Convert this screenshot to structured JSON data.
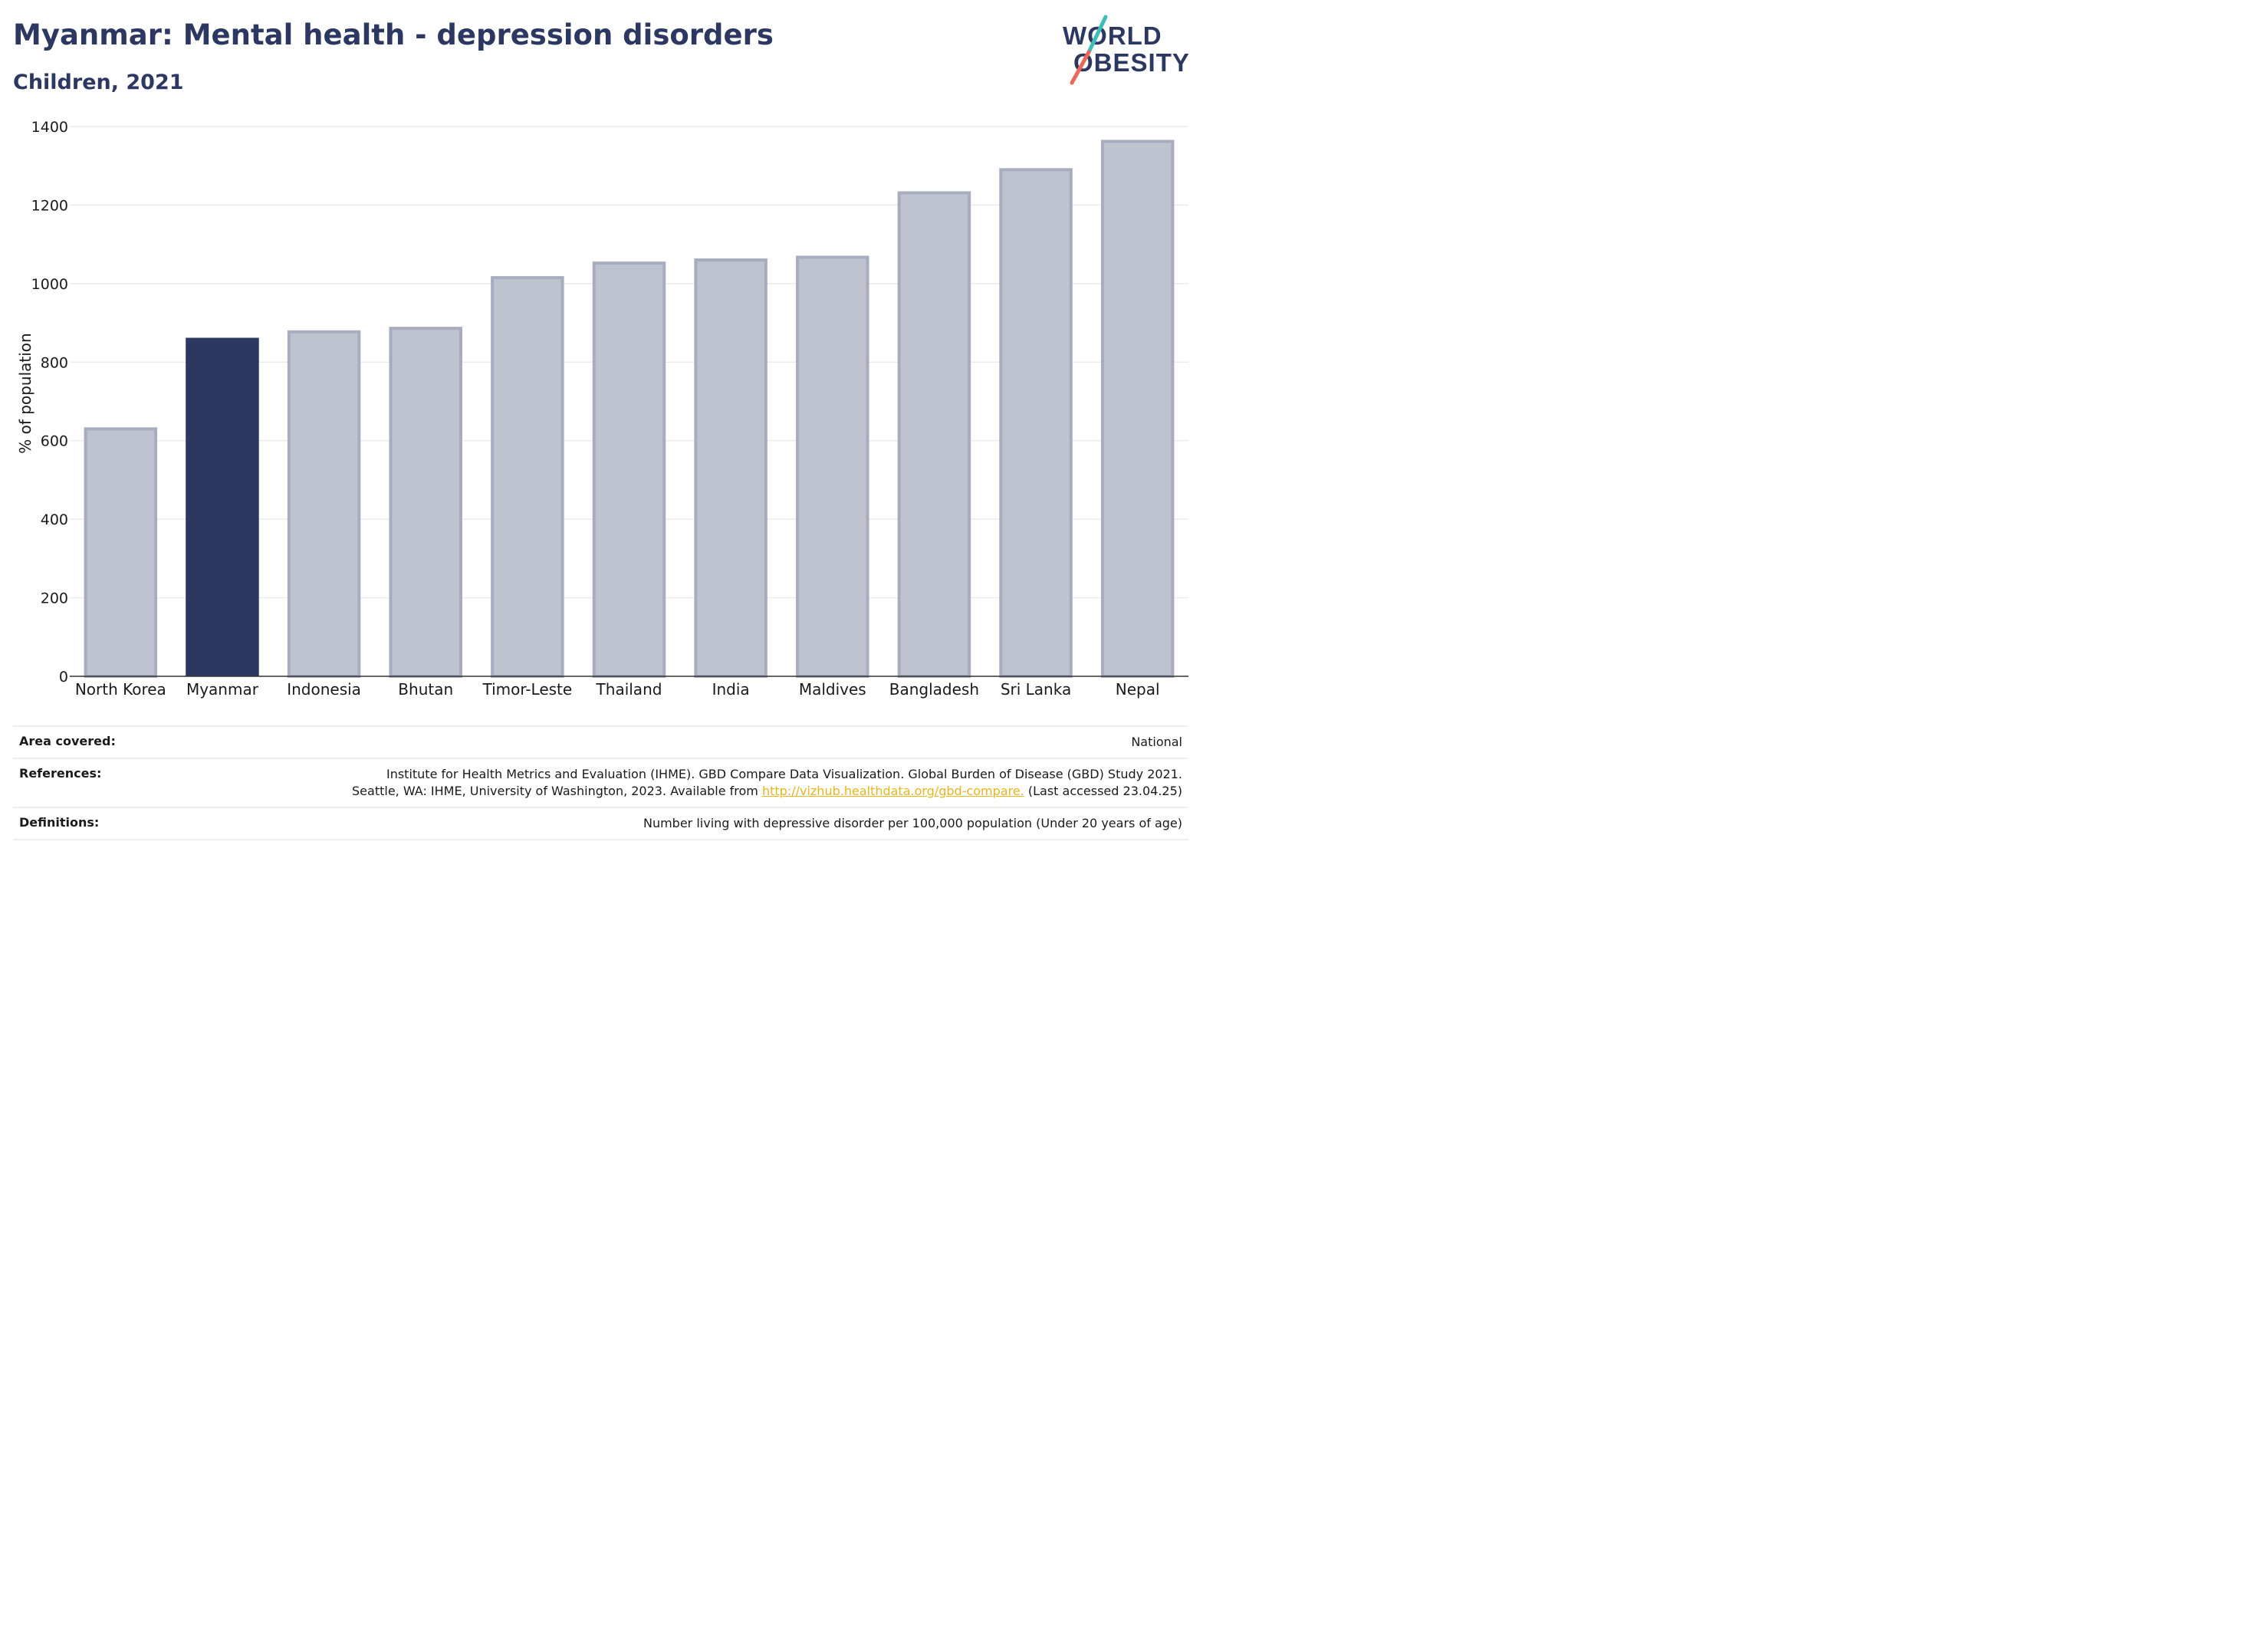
{
  "header": {
    "title": "Myanmar: Mental health - depression disorders",
    "subtitle": "Children, 2021"
  },
  "logo": {
    "line1": "WORLD",
    "line2": "OBESITY"
  },
  "chart_data": {
    "type": "bar",
    "categories": [
      "North Korea",
      "Myanmar",
      "Indonesia",
      "Bhutan",
      "Timor-Leste",
      "Thailand",
      "India",
      "Maldives",
      "Bangladesh",
      "Sri Lanka",
      "Nepal"
    ],
    "values": [
      634,
      862,
      881,
      890,
      1019,
      1056,
      1064,
      1071,
      1235,
      1294,
      1366
    ],
    "highlight": "Myanmar",
    "ylabel": "% of population",
    "ylim": [
      0,
      1400
    ],
    "yticks": [
      0,
      200,
      400,
      600,
      800,
      1000,
      1200,
      1400
    ],
    "grid": true,
    "colors": {
      "highlight": "#2c3862",
      "other_fill": "#bfc3cf",
      "other_edge": "#a7adbf",
      "grid": "#ececec"
    }
  },
  "info": {
    "area_label": "Area covered:",
    "area_value": "National",
    "references_label": "References:",
    "references_line1": "Institute for Health Metrics and Evaluation (IHME). GBD Compare Data Visualization. Global Burden of Disease (GBD) Study 2021.",
    "references_line2_pre": "Seattle, WA: IHME, University of Washington, 2023. Available from ",
    "references_link": "http://vizhub.healthdata.org/gbd-compare.",
    "references_line2_post": " (Last accessed 23.04.25)",
    "definitions_label": "Definitions:",
    "definitions_value": "Number living with depressive disorder per 100,000 population (Under 20 years of age)"
  }
}
